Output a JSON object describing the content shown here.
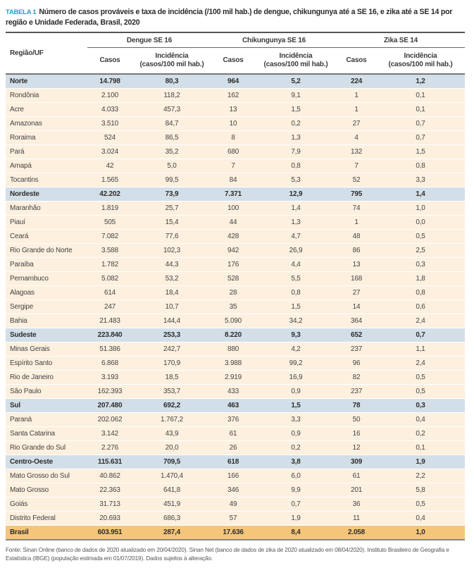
{
  "title": {
    "label": "TABELA 1",
    "text": "Número de casos prováveis e taxa de incidência (/100 mil hab.) de dengue, chikungunya até a SE 16, e zika até a SE 14 por região e Unidade Federada, Brasil, 2020"
  },
  "header": {
    "region_col": "Região/UF",
    "groups": [
      "Dengue SE 16",
      "Chikungunya SE 16",
      "Zika SE 14"
    ],
    "casos": "Casos",
    "incid_line1": "Incidência",
    "incid_line2": "(casos/100 mil hab.)"
  },
  "rows": [
    {
      "type": "region",
      "name": "Norte",
      "v": [
        "14.798",
        "80,3",
        "964",
        "5,2",
        "224",
        "1,2"
      ]
    },
    {
      "type": "state",
      "name": "Rondônia",
      "v": [
        "2.100",
        "118,2",
        "162",
        "9,1",
        "1",
        "0,1"
      ]
    },
    {
      "type": "state",
      "name": "Acre",
      "v": [
        "4.033",
        "457,3",
        "13",
        "1,5",
        "1",
        "0,1"
      ]
    },
    {
      "type": "state",
      "name": "Amazonas",
      "v": [
        "3.510",
        "84,7",
        "10",
        "0,2",
        "27",
        "0,7"
      ]
    },
    {
      "type": "state",
      "name": "Roraima",
      "v": [
        "524",
        "86,5",
        "8",
        "1,3",
        "4",
        "0,7"
      ]
    },
    {
      "type": "state",
      "name": "Pará",
      "v": [
        "3.024",
        "35,2",
        "680",
        "7,9",
        "132",
        "1,5"
      ]
    },
    {
      "type": "state",
      "name": "Amapá",
      "v": [
        "42",
        "5,0",
        "7",
        "0,8",
        "7",
        "0,8"
      ]
    },
    {
      "type": "state",
      "name": "Tocantins",
      "v": [
        "1.565",
        "99,5",
        "84",
        "5,3",
        "52",
        "3,3"
      ]
    },
    {
      "type": "region",
      "name": "Nordeste",
      "v": [
        "42.202",
        "73,9",
        "7.371",
        "12,9",
        "795",
        "1,4"
      ]
    },
    {
      "type": "state",
      "name": "Maranhão",
      "v": [
        "1.819",
        "25,7",
        "100",
        "1,4",
        "74",
        "1,0"
      ]
    },
    {
      "type": "state",
      "name": "Piauí",
      "v": [
        "505",
        "15,4",
        "44",
        "1,3",
        "1",
        "0,0"
      ]
    },
    {
      "type": "state",
      "name": "Ceará",
      "v": [
        "7.082",
        "77,6",
        "428",
        "4,7",
        "48",
        "0,5"
      ]
    },
    {
      "type": "state",
      "name": "Rio Grande do Norte",
      "v": [
        "3.588",
        "102,3",
        "942",
        "26,9",
        "86",
        "2,5"
      ]
    },
    {
      "type": "state",
      "name": "Paraíba",
      "v": [
        "1.782",
        "44,3",
        "176",
        "4,4",
        "13",
        "0,3"
      ]
    },
    {
      "type": "state",
      "name": "Pernambuco",
      "v": [
        "5.082",
        "53,2",
        "528",
        "5,5",
        "168",
        "1,8"
      ]
    },
    {
      "type": "state",
      "name": "Alagoas",
      "v": [
        "614",
        "18,4",
        "28",
        "0,8",
        "27",
        "0,8"
      ]
    },
    {
      "type": "state",
      "name": "Sergipe",
      "v": [
        "247",
        "10,7",
        "35",
        "1,5",
        "14",
        "0,6"
      ]
    },
    {
      "type": "state",
      "name": "Bahia",
      "v": [
        "21.483",
        "144,4",
        "5.090",
        "34,2",
        "364",
        "2,4"
      ]
    },
    {
      "type": "region",
      "name": "Sudeste",
      "v": [
        "223.840",
        "253,3",
        "8.220",
        "9,3",
        "652",
        "0,7"
      ]
    },
    {
      "type": "state",
      "name": "Minas Gerais",
      "v": [
        "51.386",
        "242,7",
        "880",
        "4,2",
        "237",
        "1,1"
      ]
    },
    {
      "type": "state",
      "name": "Espírito Santo",
      "v": [
        "6.868",
        "170,9",
        "3.988",
        "99,2",
        "96",
        "2,4"
      ]
    },
    {
      "type": "state",
      "name": "Rio de Janeiro",
      "v": [
        "3.193",
        "18,5",
        "2.919",
        "16,9",
        "82",
        "0,5"
      ]
    },
    {
      "type": "state",
      "name": "São Paulo",
      "v": [
        "162.393",
        "353,7",
        "433",
        "0,9",
        "237",
        "0,5"
      ]
    },
    {
      "type": "region",
      "name": "Sul",
      "v": [
        "207.480",
        "692,2",
        "463",
        "1,5",
        "78",
        "0,3"
      ]
    },
    {
      "type": "state",
      "name": "Paraná",
      "v": [
        "202.062",
        "1.767,2",
        "376",
        "3,3",
        "50",
        "0,4"
      ]
    },
    {
      "type": "state",
      "name": "Santa Catarina",
      "v": [
        "3.142",
        "43,9",
        "61",
        "0,9",
        "16",
        "0,2"
      ]
    },
    {
      "type": "state",
      "name": "Rio Grande do Sul",
      "v": [
        "2.276",
        "20,0",
        "26",
        "0,2",
        "12",
        "0,1"
      ]
    },
    {
      "type": "region",
      "name": "Centro-Oeste",
      "v": [
        "115.631",
        "709,5",
        "618",
        "3,8",
        "309",
        "1,9"
      ]
    },
    {
      "type": "state",
      "name": "Mato Grosso do Sul",
      "v": [
        "40.862",
        "1.470,4",
        "166",
        "6,0",
        "61",
        "2,2"
      ]
    },
    {
      "type": "state",
      "name": "Mato Grosso",
      "v": [
        "22.363",
        "641,8",
        "346",
        "9,9",
        "201",
        "5,8"
      ]
    },
    {
      "type": "state",
      "name": "Goiás",
      "v": [
        "31.713",
        "451,9",
        "49",
        "0,7",
        "36",
        "0,5"
      ]
    },
    {
      "type": "state",
      "name": "Distrito Federal",
      "v": [
        "20.693",
        "686,3",
        "57",
        "1,9",
        "11",
        "0,4"
      ]
    },
    {
      "type": "total",
      "name": "Brasil",
      "v": [
        "603.951",
        "287,4",
        "17.636",
        "8,4",
        "2.058",
        "1,0"
      ]
    }
  ],
  "footer": "Fonte: Sinan Online (banco de dados de 2020 atualizado em 20/04/2020). Sinan Net (banco de dados de zika de 2020 atualizado em 08/04/2020). Instituto Brasileiro de Geografia e Estatística (IBGE) (população estimada em 01/07/2019). Dados sujeitos à alteração.",
  "colors": {
    "title_label": "#2a9bd0",
    "region_row": "#d3dfe8",
    "state_row": "#fdf0df",
    "total_row": "#f5c679"
  }
}
